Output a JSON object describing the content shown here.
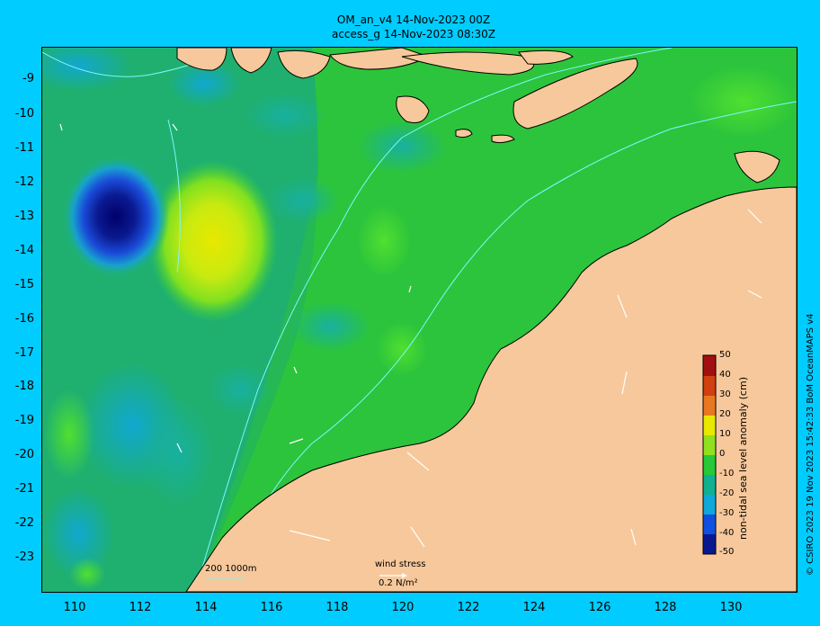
{
  "title": {
    "line1": "OM_an_v4  14-Nov-2023 00Z",
    "line2": "access_g 14-Nov-2023 08:30Z"
  },
  "credit": "© CSIRO 2023  19 Nov 2023 15:42:33 BoM OceanMAPS v4",
  "colorbar": {
    "title": "non-tidal sea level anomaly (cm)",
    "ticks": [
      "50",
      "40",
      "30",
      "20",
      "10",
      "0",
      "-10",
      "-20",
      "-30",
      "-40",
      "-50"
    ],
    "range": [
      -50,
      50
    ]
  },
  "axes": {
    "longitude_ticks": [
      "110",
      "112",
      "114",
      "116",
      "118",
      "120",
      "122",
      "124",
      "126",
      "128",
      "130"
    ],
    "latitude_ticks": [
      "-9",
      "-10",
      "-11",
      "-12",
      "-13",
      "-14",
      "-15",
      "-16",
      "-17",
      "-18",
      "-19",
      "-20",
      "-21",
      "-22",
      "-23"
    ]
  },
  "legend": {
    "depth_contours": "200  1000m",
    "wind_title": "wind stress",
    "wind_scale": "0.2 N/m²"
  },
  "colors": {
    "background": "#00ccff",
    "land": "#f7c89b",
    "ocean_base": "#22c040",
    "contour": "#7ff5ff"
  }
}
